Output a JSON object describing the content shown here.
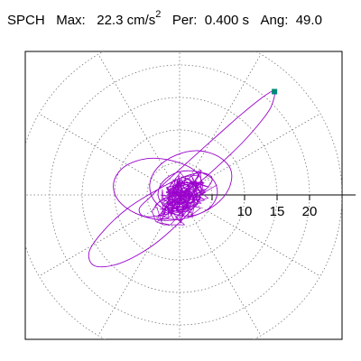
{
  "header": {
    "station": "SPCH",
    "max_label": "Max:",
    "max_value": "22.3",
    "max_unit": "cm/s",
    "max_unit_exp": "2",
    "per_label": "Per:",
    "per_value": "0.400 s",
    "ang_label": "Ang:",
    "ang_value": "49.0"
  },
  "chart_data": {
    "type": "polar-trajectory",
    "title": "",
    "units": "cm/s^2",
    "radial_ticks": [
      10,
      15,
      20
    ],
    "grid_rings": [
      5,
      10,
      15,
      20,
      25
    ],
    "grid_spokes_deg": [
      0,
      30,
      60,
      90,
      120,
      150,
      180,
      210,
      240,
      270,
      300,
      330
    ],
    "grid": true,
    "line_color": "#9a00cc",
    "marker_color": "#008877",
    "peak_point": {
      "x": 14.6,
      "y": 15.9
    },
    "path_points": [
      [
        0.5,
        0.3
      ],
      [
        3.1,
        2.0
      ],
      [
        6.4,
        4.9
      ],
      [
        9.8,
        8.2
      ],
      [
        12.6,
        11.4
      ],
      [
        14.1,
        13.6
      ],
      [
        14.6,
        15.9
      ],
      [
        13.0,
        15.2
      ],
      [
        9.5,
        12.4
      ],
      [
        5.2,
        8.6
      ],
      [
        1.3,
        5.1
      ],
      [
        -2.1,
        2.0
      ],
      [
        -4.6,
        -0.4
      ],
      [
        -6.2,
        -2.1
      ],
      [
        -5.4,
        -3.3
      ],
      [
        -2.2,
        -3.0
      ],
      [
        1.4,
        -1.5
      ],
      [
        4.1,
        0.9
      ],
      [
        5.0,
        2.6
      ],
      [
        3.3,
        3.4
      ],
      [
        0.2,
        2.6
      ],
      [
        -3.6,
        0.7
      ],
      [
        -7.9,
        -2.0
      ],
      [
        -11.6,
        -5.4
      ],
      [
        -13.9,
        -8.7
      ],
      [
        -13.1,
        -10.9
      ],
      [
        -9.4,
        -10.6
      ],
      [
        -4.6,
        -8.1
      ],
      [
        -0.4,
        -4.6
      ],
      [
        2.6,
        -1.3
      ],
      [
        3.5,
        1.6
      ],
      [
        2.1,
        3.9
      ],
      [
        -1.3,
        5.3
      ],
      [
        -5.0,
        5.6
      ],
      [
        -8.4,
        4.4
      ],
      [
        -10.1,
        2.1
      ],
      [
        -9.6,
        -0.6
      ],
      [
        -6.8,
        -2.8
      ],
      [
        -2.6,
        -3.9
      ],
      [
        1.6,
        -3.4
      ],
      [
        5.4,
        -1.6
      ],
      [
        7.6,
        1.0
      ],
      [
        7.9,
        3.8
      ],
      [
        6.0,
        5.9
      ],
      [
        2.8,
        6.8
      ],
      [
        -0.6,
        6.1
      ],
      [
        -3.4,
        4.2
      ],
      [
        -4.6,
        1.6
      ],
      [
        -3.8,
        -1.0
      ],
      [
        -1.2,
        -2.8
      ],
      [
        1.9,
        -3.2
      ],
      [
        4.6,
        -2.0
      ],
      [
        5.8,
        0.2
      ],
      [
        5.1,
        2.4
      ],
      [
        2.7,
        3.6
      ],
      [
        -0.3,
        3.5
      ],
      [
        -2.6,
        2.0
      ],
      [
        -3.3,
        -0.1
      ],
      [
        -2.1,
        -1.9
      ],
      [
        0.3,
        -2.6
      ],
      [
        2.4,
        -1.8
      ],
      [
        3.2,
        -0.1
      ],
      [
        2.4,
        1.4
      ],
      [
        0.6,
        1.9
      ],
      [
        -1.1,
        1.2
      ],
      [
        -1.6,
        -0.2
      ],
      [
        -0.7,
        -1.2
      ],
      [
        0.6,
        -1.1
      ],
      [
        1.1,
        0.1
      ],
      [
        0.3,
        0.6
      ],
      [
        -0.4,
        0.1
      ],
      [
        0.0,
        -0.3
      ],
      [
        0.2,
        0.0
      ]
    ]
  }
}
